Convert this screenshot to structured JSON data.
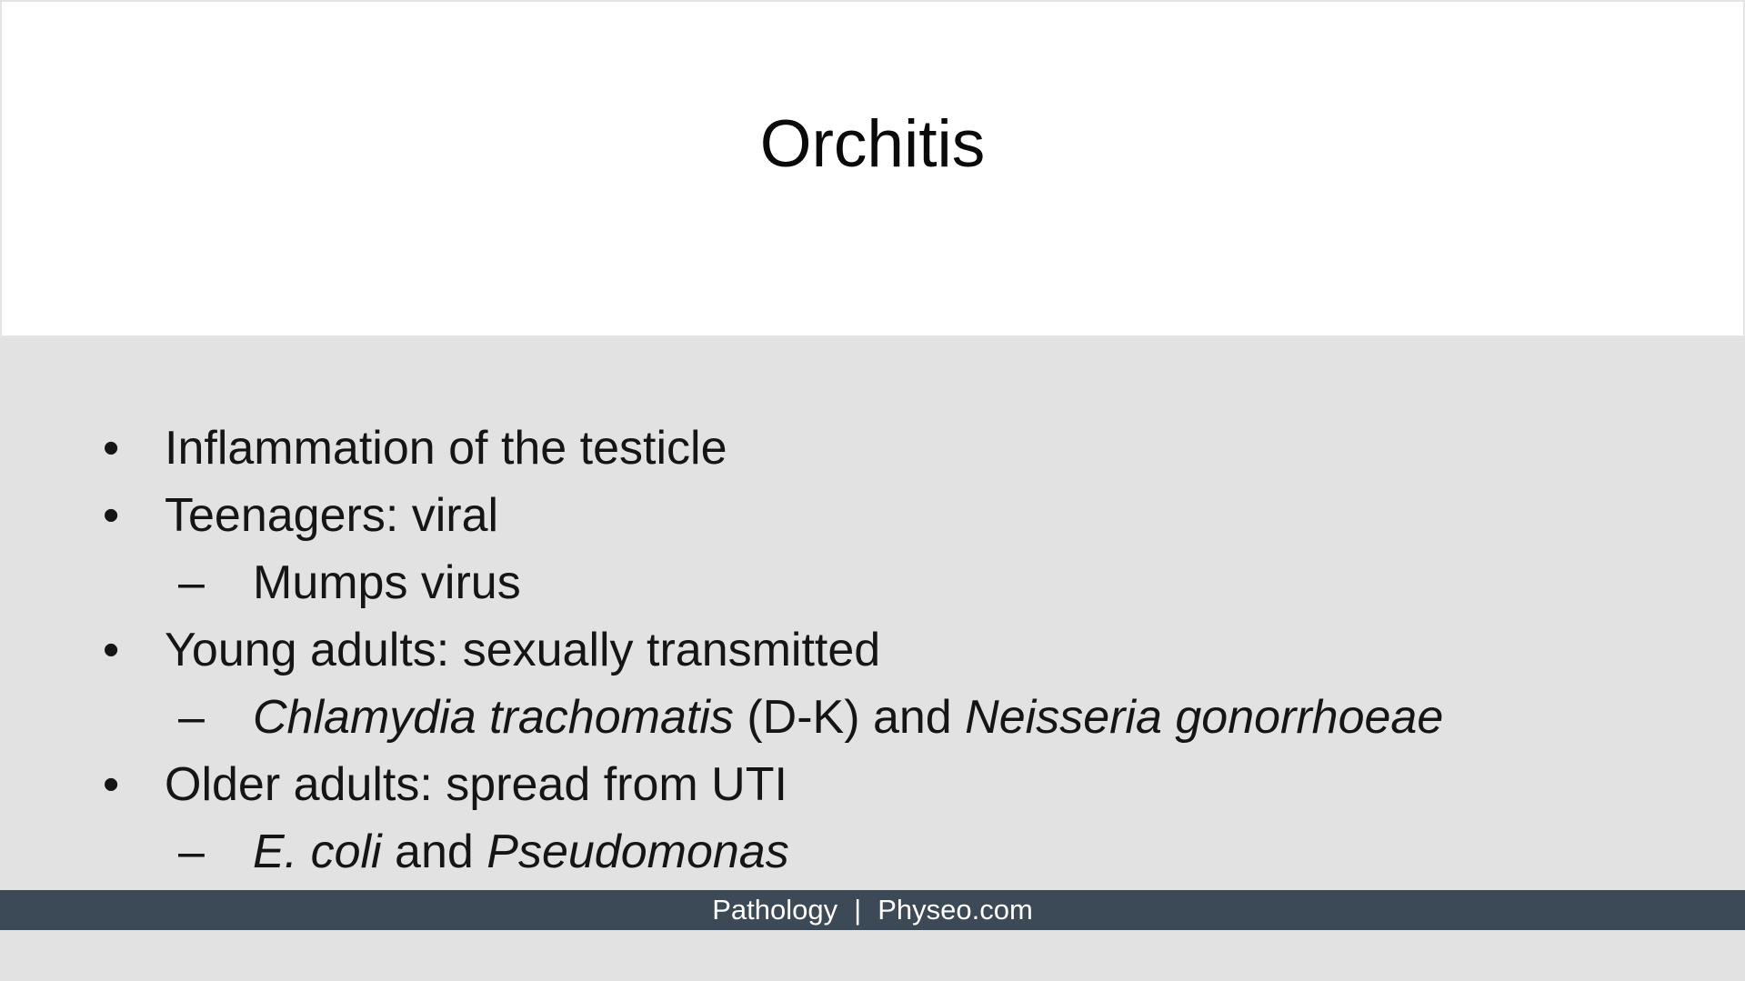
{
  "slide": {
    "title": "Orchitis",
    "bullets": [
      {
        "level": 1,
        "marker": "•",
        "text": "Inflammation of the testicle"
      },
      {
        "level": 1,
        "marker": "•",
        "text": "Teenagers: viral"
      },
      {
        "level": 2,
        "marker": "–",
        "text": "Mumps virus"
      },
      {
        "level": 1,
        "marker": "•",
        "text": "Young adults: sexually transmitted"
      },
      {
        "level": 2,
        "marker": "–",
        "parts": [
          "Chlamydia trachomatis",
          " (D-K) and ",
          "Neisseria gonorrhoeae"
        ]
      },
      {
        "level": 1,
        "marker": "•",
        "text": "Older adults: spread from UTI"
      },
      {
        "level": 2,
        "marker": "–",
        "parts": [
          "E. coli",
          " and ",
          "Pseudomonas"
        ]
      }
    ]
  },
  "footer": {
    "left": "Pathology",
    "separator": "|",
    "right": "Physeo.com"
  },
  "colors": {
    "title_background": "#ffffff",
    "content_background": "#e2e2e2",
    "footer_background": "#3c4a57",
    "footer_text": "#ffffff"
  }
}
